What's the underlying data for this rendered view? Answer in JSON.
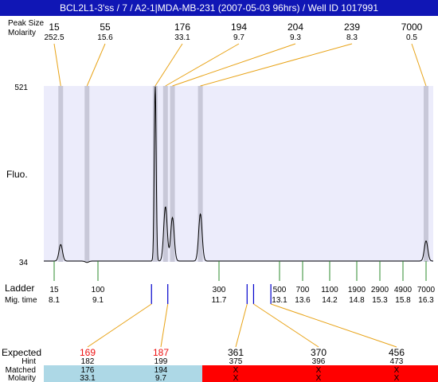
{
  "title": "BCL2L1-3'ss / 7 / A2-1|MDA-MB-231 (2007-05-03 96hrs) / Well ID 1017991",
  "colors": {
    "title_bg": "#1016b5",
    "plot_bg": "#ececfb",
    "peak_band": "#c8c8d8",
    "trace": "#000000",
    "connector": "#e8a317",
    "ladder_tick": "#2e8b2e",
    "matched_marker": "#0000cc",
    "expected_red": "#ee1111",
    "matched_row_bg": "#add8e6",
    "unmatched_row_bg": "#ff0000"
  },
  "chart_data": {
    "type": "line",
    "title": "BCL2L1-3'ss / 7 / A2-1|MDA-MB-231 (2007-05-03 96hrs) / Well ID 1017991",
    "ylabel": "Fluo.",
    "ylim": [
      34,
      521
    ],
    "y_ticks": [
      "521",
      "34"
    ],
    "top_rows": {
      "row1_label": "Peak Size",
      "row2_label": "Molarity"
    },
    "peaks": [
      {
        "size": "15",
        "molarity": "252.5",
        "mig_time": 8.25,
        "height": 80
      },
      {
        "size": "55",
        "molarity": "15.6",
        "mig_time": 8.85,
        "height": 30
      },
      {
        "size": "176",
        "molarity": "33.1",
        "mig_time": 10.33,
        "height": 521
      },
      {
        "size": "194",
        "molarity": "9.7",
        "mig_time": 10.55,
        "height": 185
      },
      {
        "size": "204",
        "molarity": "9.3",
        "mig_time": 10.7,
        "height": 155
      },
      {
        "size": "239",
        "molarity": "8.3",
        "mig_time": 11.3,
        "height": 165
      },
      {
        "size": "7000",
        "molarity": "0.5",
        "mig_time": 16.3,
        "height": 90
      }
    ],
    "ladder": {
      "label": "Ladder",
      "mig_label": "Mig. time",
      "sizes": [
        "15",
        "100",
        "300",
        "500",
        "700",
        "1100",
        "1900",
        "2900",
        "4900",
        "7000"
      ],
      "mig_times": [
        "8.1",
        "9.1",
        "11.7",
        "13.1",
        "13.6",
        "14.2",
        "14.8",
        "15.3",
        "15.8",
        "16.3"
      ]
    },
    "bottom_table": {
      "expected_label": "Expected",
      "hint_label": "Hint",
      "matched_label": "Matched",
      "molarity_label": "Molarity",
      "columns": [
        {
          "expected": "169",
          "hint": "182",
          "matched": "176",
          "molarity": "33.1",
          "status": "matched",
          "marker_mig": 10.25
        },
        {
          "expected": "187",
          "hint": "199",
          "matched": "194",
          "molarity": "9.7",
          "status": "matched",
          "marker_mig": 10.6
        },
        {
          "expected": "361",
          "hint": "375",
          "matched": "X",
          "molarity": "X",
          "status": "unmatched",
          "marker_mig": 12.35
        },
        {
          "expected": "370",
          "hint": "396",
          "matched": "X",
          "molarity": "X",
          "status": "unmatched",
          "marker_mig": 12.5
        },
        {
          "expected": "456",
          "hint": "473",
          "matched": "X",
          "molarity": "X",
          "status": "unmatched",
          "marker_mig": 12.9
        }
      ]
    }
  }
}
